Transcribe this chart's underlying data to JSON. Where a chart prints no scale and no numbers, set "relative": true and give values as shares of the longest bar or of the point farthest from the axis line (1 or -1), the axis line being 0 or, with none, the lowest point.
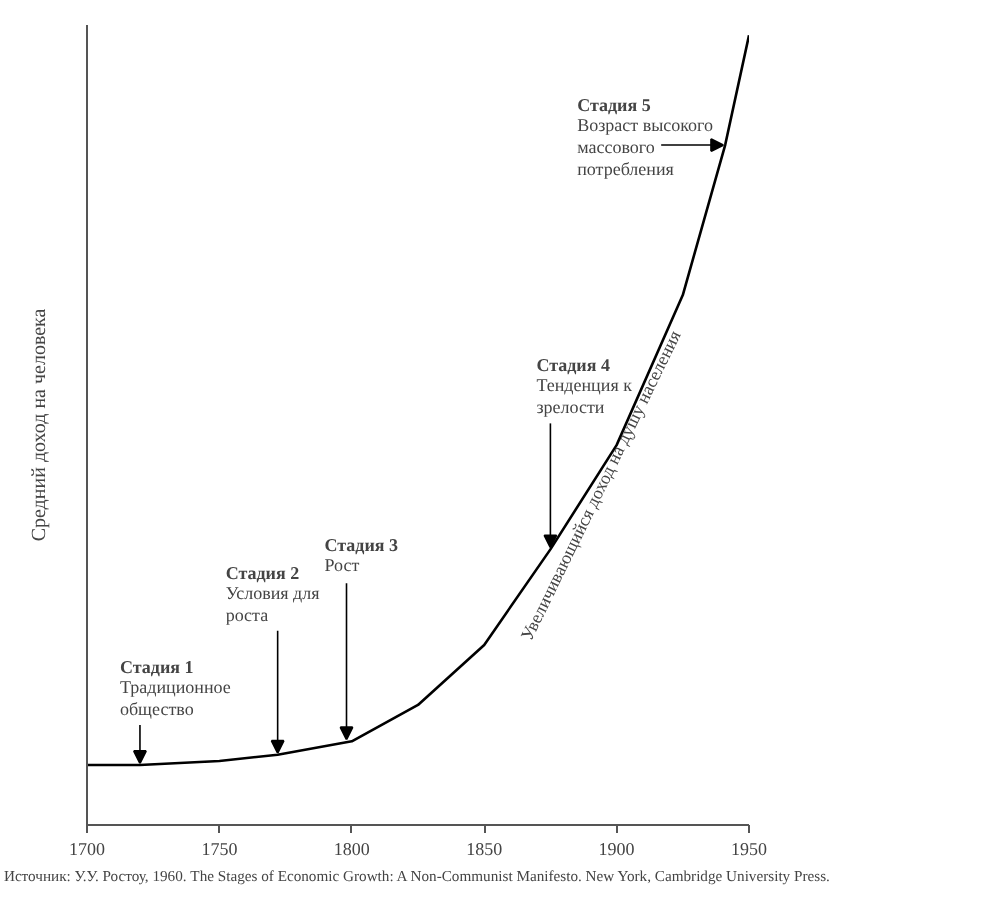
{
  "chart_data": {
    "type": "line",
    "ylabel": "Средний доход на человека",
    "x": [
      1700,
      1720,
      1750,
      1772,
      1800,
      1825,
      1850,
      1875,
      1900,
      1925,
      1941,
      1950
    ],
    "xlim": [
      1700,
      1950
    ],
    "xticks": [
      1700,
      1750,
      1800,
      1850,
      1900,
      1950
    ],
    "relative": true,
    "line_style": "solid",
    "series": [
      {
        "color": "#000000",
        "values": [
          0.076,
          0.076,
          0.081,
          0.089,
          0.106,
          0.152,
          0.228,
          0.349,
          0.481,
          0.671,
          0.861,
          1.0
        ]
      }
    ],
    "annotations": [
      {
        "text": "Стадия 1\nТрадиционное\nобщество",
        "x": 1720,
        "y": 0.076
      },
      {
        "text": "Стадия 2\nУсловия для\nроста",
        "x": 1772,
        "y": 0.089
      },
      {
        "text": "Стадия 3\nРост",
        "x": 1798,
        "y": 0.106
      },
      {
        "text": "Стадия 4\nТенденция к\nзрелости",
        "x": 1875,
        "y": 0.349
      },
      {
        "text": "Стадия 5\nВозраст высокого\nмассового\nпотребления",
        "x": 1941,
        "y": 0.861
      },
      "Увеличивающийся доход на душу населения",
      "Источник: У.У. Ростоу, 1960. The Stages of Economic Growth: A Non-Communist Manifesto. New York, Cambridge University Press."
    ]
  }
}
